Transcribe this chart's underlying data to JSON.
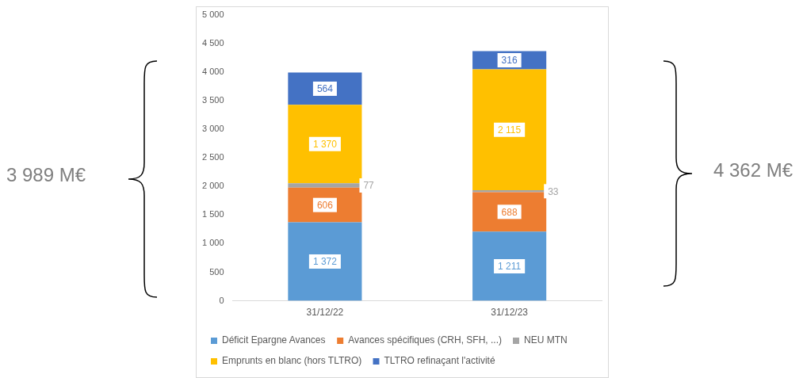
{
  "chart_data": {
    "type": "bar",
    "stacked": true,
    "categories": [
      "31/12/22",
      "31/12/23"
    ],
    "series": [
      {
        "name": "Déficit Epargne Avances",
        "color": "#5b9bd5",
        "values": [
          1372,
          1211
        ],
        "value_labels": [
          "1 372",
          "1 211"
        ]
      },
      {
        "name": "Avances spécifiques (CRH, SFH, ...)",
        "color": "#ed7d31",
        "values": [
          606,
          688
        ],
        "value_labels": [
          "606",
          "688"
        ]
      },
      {
        "name": "NEU MTN",
        "color": "#a5a5a5",
        "values": [
          77,
          33
        ],
        "value_labels": [
          "77",
          "33"
        ]
      },
      {
        "name": "Emprunts en blanc (hors TLTRO)",
        "color": "#ffc000",
        "values": [
          1370,
          2115
        ],
        "value_labels": [
          "1 370",
          "2 115"
        ]
      },
      {
        "name": "TLTRO refinaçant l'activité",
        "color": "#4472c4",
        "values": [
          564,
          316
        ],
        "value_labels": [
          "564",
          "316"
        ]
      }
    ],
    "ylim": [
      0,
      5000
    ],
    "yticks": [
      0,
      {
        "value": 500,
        "label": "500"
      },
      {
        "value": 1000,
        "label": "1 000"
      },
      {
        "value": 1500,
        "label": "1 500"
      },
      {
        "value": 2000,
        "label": "2 000"
      },
      {
        "value": 2500,
        "label": "2 500"
      },
      {
        "value": 3000,
        "label": "3 000"
      },
      {
        "value": 3500,
        "label": "3 500"
      },
      {
        "value": 4000,
        "label": "4 000"
      },
      {
        "value": 4500,
        "label": "4 500"
      },
      {
        "value": 5000,
        "label": "5 000"
      }
    ],
    "grid": false,
    "legend": "bottom",
    "annotations": [
      "3 989 M€",
      "4 362 M€"
    ]
  }
}
